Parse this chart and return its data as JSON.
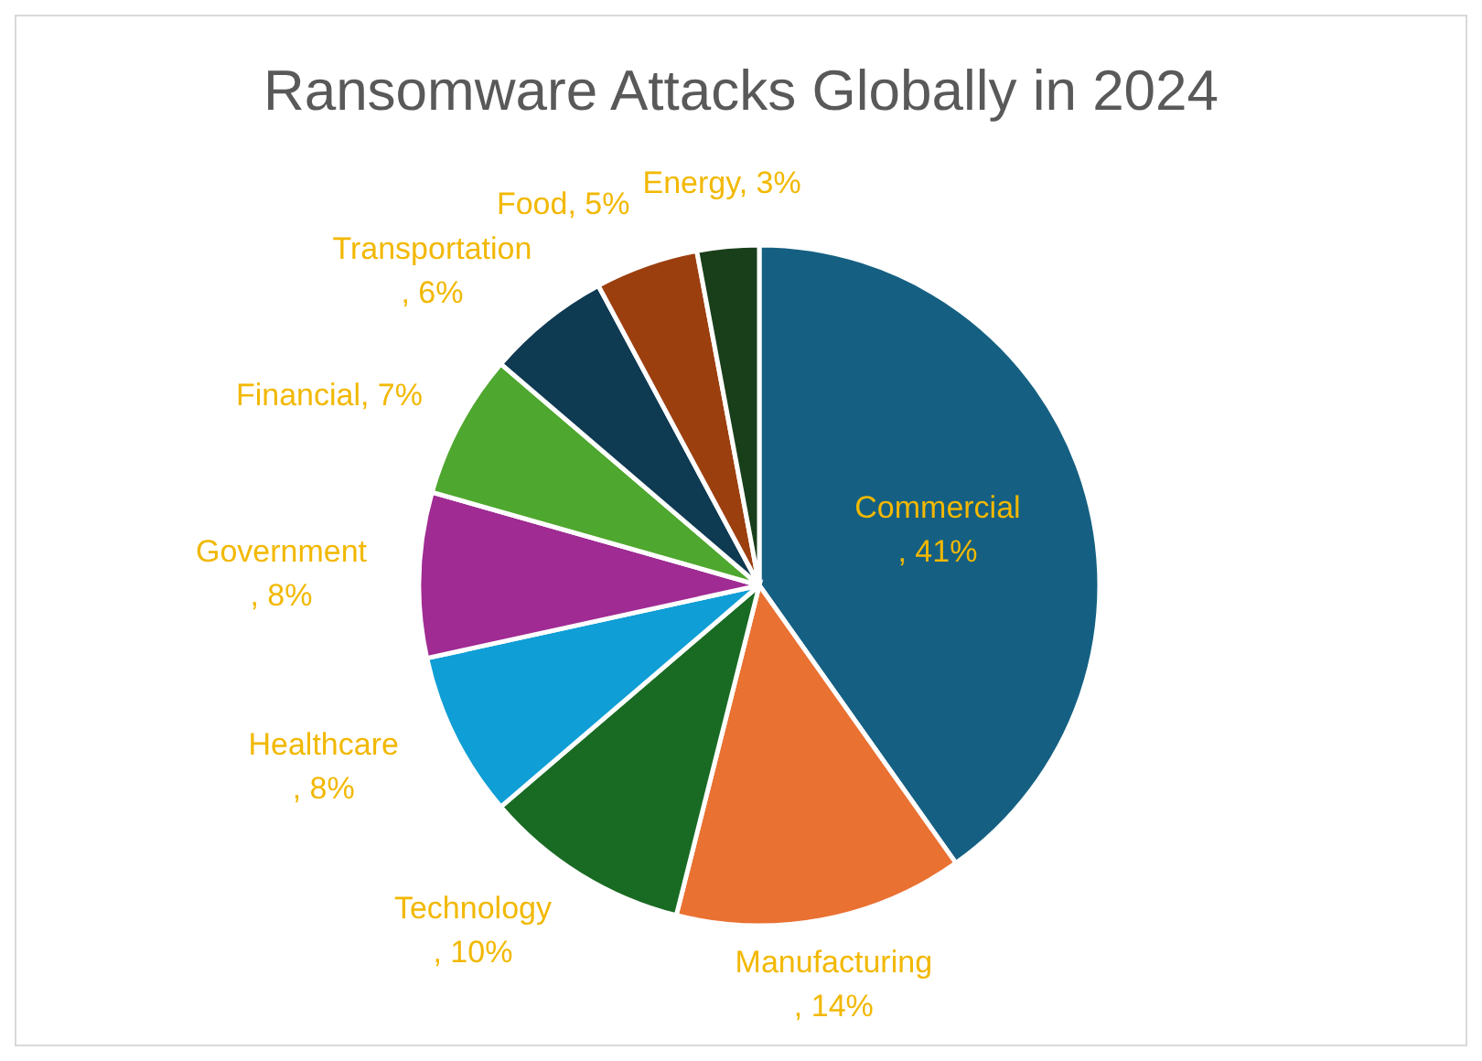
{
  "chart_data": {
    "type": "pie",
    "title": "Ransomware Attacks Globally in 2024",
    "categories": [
      "Commercial",
      "Manufacturing",
      "Technology",
      "Healthcare",
      "Government",
      "Financial",
      "Transportation",
      "Food",
      "Energy"
    ],
    "values": [
      41,
      14,
      10,
      8,
      8,
      7,
      6,
      5,
      3
    ],
    "value_labels": [
      ", 41%",
      ", 14%",
      ", 10%",
      ", 8%",
      ", 8%",
      ", 7%",
      ", 6%",
      ", 5%",
      ", 3%"
    ],
    "colors": [
      "#156082",
      "#e97132",
      "#196b24",
      "#0f9ed5",
      "#a02b93",
      "#4ea72e",
      "#0e3a52",
      "#9c3f0f",
      "#193e1a"
    ]
  }
}
